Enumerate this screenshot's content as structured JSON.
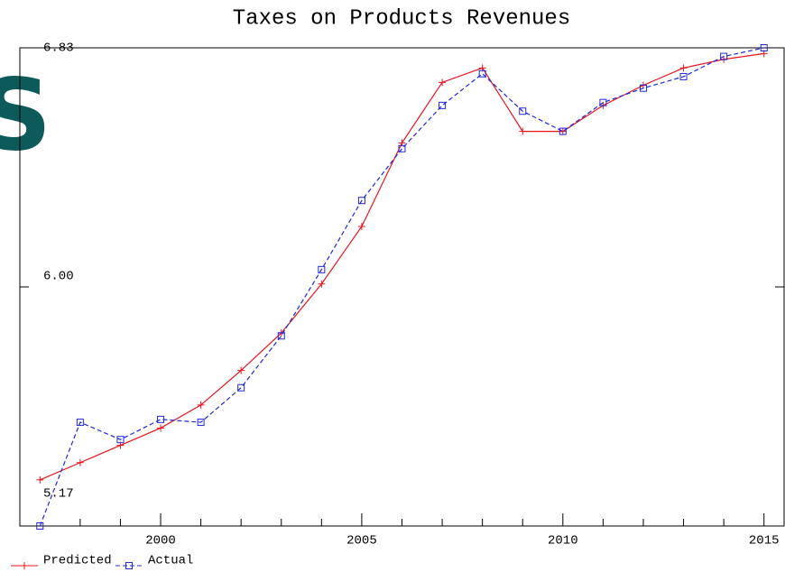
{
  "chart_data": {
    "type": "line",
    "title": "Taxes on Products Revenues",
    "watermark": "S",
    "x": [
      1997,
      1998,
      1999,
      2000,
      2001,
      2002,
      2003,
      2004,
      2005,
      2006,
      2007,
      2008,
      2009,
      2010,
      2011,
      2012,
      2013,
      2014,
      2015
    ],
    "series": [
      {
        "name": "Predicted",
        "color": "#e8141e",
        "marker": "plus",
        "values": [
          5.33,
          5.39,
          5.45,
          5.51,
          5.59,
          5.71,
          5.84,
          6.01,
          6.21,
          6.5,
          6.71,
          6.76,
          6.54,
          6.54,
          6.63,
          6.7,
          6.76,
          6.79,
          6.81
        ]
      },
      {
        "name": "Actual",
        "color": "#1e28dc",
        "marker": "square",
        "dashed": true,
        "values": [
          5.17,
          5.53,
          5.47,
          5.54,
          5.53,
          5.65,
          5.83,
          6.06,
          6.3,
          6.48,
          6.63,
          6.74,
          6.61,
          6.54,
          6.64,
          6.69,
          6.73,
          6.8,
          6.83
        ]
      }
    ],
    "xlim": [
      1996.5,
      2015.5
    ],
    "xticks": [
      2000,
      2005,
      2010,
      2015
    ],
    "xminorticks": [
      1998,
      1999,
      2001,
      2002,
      2003,
      2004,
      2006,
      2007,
      2008,
      2009,
      2011,
      2012,
      2013,
      2014
    ],
    "ylim": [
      5.17,
      6.83
    ],
    "yticks": [
      {
        "value": 5.17,
        "label": "5.17"
      },
      {
        "value": 6,
        "label": "6.00"
      },
      {
        "value": 6.83,
        "label": "6.83"
      }
    ]
  }
}
